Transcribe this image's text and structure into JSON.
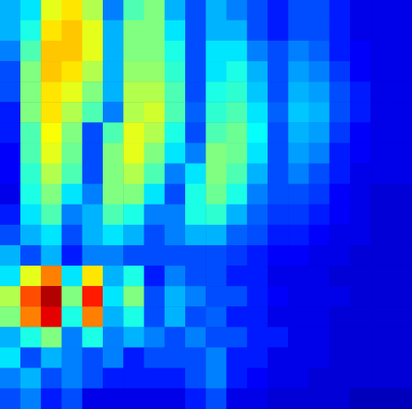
{
  "chart_data": {
    "type": "heatmap",
    "tick_labels": false,
    "color_range": [
      0,
      1
    ],
    "cells": [
      [
        0.3,
        0.35,
        0.6,
        0.65,
        0.55,
        0.25,
        0.45,
        0.5,
        0.3,
        0.2,
        0.3,
        0.25,
        0.2,
        0.15,
        0.2,
        0.2,
        0.15,
        0.1,
        0.1,
        0.1
      ],
      [
        0.3,
        0.4,
        0.65,
        0.68,
        0.6,
        0.3,
        0.5,
        0.5,
        0.35,
        0.2,
        0.3,
        0.3,
        0.2,
        0.15,
        0.2,
        0.2,
        0.15,
        0.1,
        0.1,
        0.1
      ],
      [
        0.25,
        0.45,
        0.68,
        0.68,
        0.6,
        0.3,
        0.5,
        0.5,
        0.4,
        0.2,
        0.35,
        0.35,
        0.25,
        0.2,
        0.25,
        0.22,
        0.15,
        0.12,
        0.1,
        0.1
      ],
      [
        0.2,
        0.5,
        0.68,
        0.65,
        0.55,
        0.3,
        0.52,
        0.52,
        0.42,
        0.2,
        0.35,
        0.4,
        0.3,
        0.2,
        0.28,
        0.25,
        0.18,
        0.12,
        0.1,
        0.1
      ],
      [
        0.2,
        0.5,
        0.65,
        0.6,
        0.5,
        0.3,
        0.55,
        0.55,
        0.45,
        0.2,
        0.4,
        0.42,
        0.32,
        0.2,
        0.3,
        0.28,
        0.2,
        0.15,
        0.1,
        0.1
      ],
      [
        0.15,
        0.5,
        0.65,
        0.55,
        0.45,
        0.25,
        0.55,
        0.58,
        0.45,
        0.22,
        0.42,
        0.45,
        0.35,
        0.22,
        0.32,
        0.3,
        0.2,
        0.15,
        0.1,
        0.1
      ],
      [
        0.15,
        0.45,
        0.62,
        0.5,
        0.2,
        0.45,
        0.6,
        0.55,
        0.4,
        0.2,
        0.45,
        0.48,
        0.38,
        0.2,
        0.3,
        0.28,
        0.18,
        0.12,
        0.1,
        0.1
      ],
      [
        0.12,
        0.45,
        0.6,
        0.48,
        0.2,
        0.5,
        0.6,
        0.5,
        0.35,
        0.25,
        0.5,
        0.48,
        0.35,
        0.2,
        0.28,
        0.25,
        0.15,
        0.12,
        0.1,
        0.1
      ],
      [
        0.12,
        0.42,
        0.55,
        0.45,
        0.2,
        0.5,
        0.55,
        0.45,
        0.25,
        0.35,
        0.5,
        0.45,
        0.3,
        0.2,
        0.25,
        0.2,
        0.15,
        0.1,
        0.1,
        0.1
      ],
      [
        0.1,
        0.4,
        0.5,
        0.35,
        0.25,
        0.5,
        0.5,
        0.35,
        0.2,
        0.4,
        0.48,
        0.4,
        0.25,
        0.2,
        0.2,
        0.18,
        0.12,
        0.1,
        0.08,
        0.08
      ],
      [
        0.15,
        0.35,
        0.45,
        0.25,
        0.3,
        0.45,
        0.4,
        0.25,
        0.25,
        0.4,
        0.42,
        0.3,
        0.22,
        0.18,
        0.18,
        0.15,
        0.12,
        0.1,
        0.08,
        0.08
      ],
      [
        0.2,
        0.3,
        0.35,
        0.2,
        0.3,
        0.35,
        0.3,
        0.2,
        0.25,
        0.3,
        0.3,
        0.22,
        0.2,
        0.15,
        0.15,
        0.12,
        0.1,
        0.1,
        0.08,
        0.08
      ],
      [
        0.3,
        0.2,
        0.3,
        0.15,
        0.25,
        0.25,
        0.2,
        0.2,
        0.2,
        0.2,
        0.2,
        0.18,
        0.15,
        0.12,
        0.12,
        0.1,
        0.1,
        0.08,
        0.08,
        0.08
      ],
      [
        0.35,
        0.6,
        0.75,
        0.35,
        0.65,
        0.3,
        0.4,
        0.15,
        0.25,
        0.2,
        0.2,
        0.15,
        0.15,
        0.1,
        0.1,
        0.1,
        0.08,
        0.08,
        0.08,
        0.08
      ],
      [
        0.55,
        0.8,
        0.95,
        0.5,
        0.85,
        0.35,
        0.5,
        0.2,
        0.3,
        0.25,
        0.2,
        0.2,
        0.15,
        0.12,
        0.1,
        0.1,
        0.1,
        0.08,
        0.08,
        0.08
      ],
      [
        0.5,
        0.75,
        0.9,
        0.4,
        0.75,
        0.3,
        0.4,
        0.2,
        0.3,
        0.2,
        0.22,
        0.15,
        0.15,
        0.1,
        0.1,
        0.1,
        0.08,
        0.08,
        0.08,
        0.08
      ],
      [
        0.3,
        0.4,
        0.5,
        0.25,
        0.4,
        0.25,
        0.3,
        0.25,
        0.2,
        0.25,
        0.2,
        0.2,
        0.15,
        0.15,
        0.1,
        0.1,
        0.08,
        0.08,
        0.08,
        0.08
      ],
      [
        0.35,
        0.2,
        0.3,
        0.25,
        0.2,
        0.25,
        0.15,
        0.2,
        0.2,
        0.2,
        0.25,
        0.15,
        0.15,
        0.1,
        0.1,
        0.1,
        0.08,
        0.08,
        0.08,
        0.08
      ],
      [
        0.25,
        0.3,
        0.2,
        0.25,
        0.2,
        0.15,
        0.15,
        0.15,
        0.15,
        0.2,
        0.25,
        0.15,
        0.12,
        0.1,
        0.1,
        0.08,
        0.08,
        0.08,
        0.08,
        0.08
      ],
      [
        0.2,
        0.25,
        0.15,
        0.2,
        0.1,
        0.1,
        0.1,
        0.1,
        0.1,
        0.15,
        0.2,
        0.1,
        0.1,
        0.08,
        0.08,
        0.08,
        0.08,
        0.05,
        0.05,
        0.05
      ]
    ]
  }
}
